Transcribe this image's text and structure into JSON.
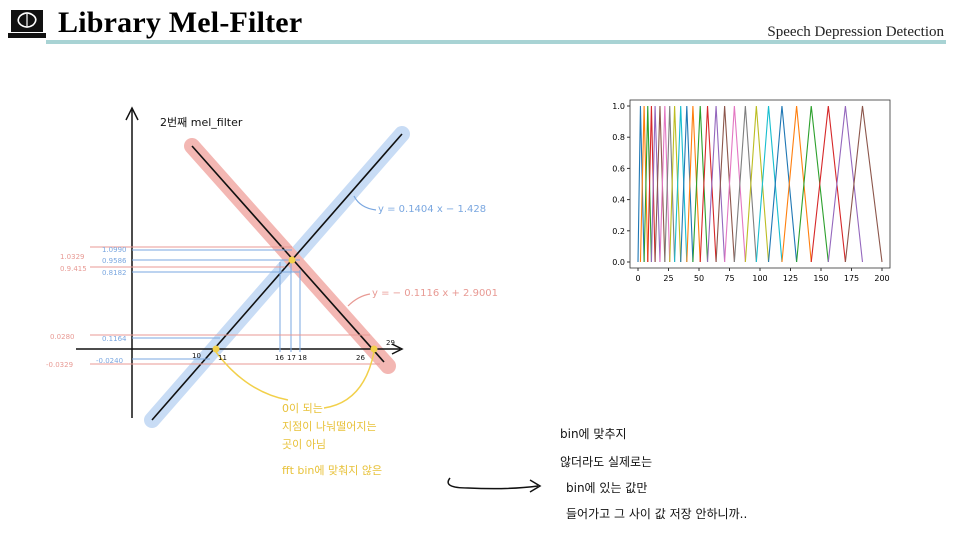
{
  "header": {
    "title": "Library Mel-Filter",
    "subtitle": "Speech Depression Detection",
    "logo_icon": "laptop-brain-icon"
  },
  "sketch": {
    "heading": "2번째 mel_filter",
    "equation_up": "y = 0.1404 x − 1.428",
    "equation_down": "y = − 0.1116 x + 2.9001",
    "y_labels_red": [
      "1.0329",
      "0.9.415",
      "0.0280",
      "-0.0329"
    ],
    "y_labels_blue": [
      "1.0990",
      "0.9586",
      "0.8182",
      "0.1164",
      "-0.0240"
    ],
    "x_labels": [
      "10",
      "11",
      "16",
      "17",
      "18",
      "26",
      "29"
    ],
    "yellow_note": [
      "0이 되는",
      "지점이 나눠떨어지는",
      "곳이 아님",
      "fft bin에 맞춰지 않은"
    ],
    "colors": {
      "up_line": "#c8dcf5",
      "down_line": "#f3b7b3",
      "blue_text": "#7aa7e0",
      "red_text": "#e89a94",
      "yellow": "#f2d04a"
    }
  },
  "plot": {
    "y_ticks": [
      "1.0",
      "0.8",
      "0.6",
      "0.4",
      "0.2",
      "0.0"
    ],
    "x_ticks": [
      "0",
      "25",
      "50",
      "75",
      "100",
      "125",
      "150",
      "175",
      "200"
    ]
  },
  "chart_data": {
    "type": "line",
    "title": "",
    "xlabel": "",
    "ylabel": "",
    "xlim": [
      0,
      200
    ],
    "ylim": [
      0,
      1.0
    ],
    "description_series": "triangular mel filters; peaks at listed x, height 1.0",
    "peaks": [
      2,
      5,
      8,
      11,
      14,
      18,
      22,
      26,
      30,
      35,
      40,
      45,
      51,
      57,
      64,
      71,
      79,
      88,
      97,
      107,
      118,
      130,
      142,
      156,
      170,
      184
    ],
    "palette": [
      "#1f77b4",
      "#ff7f0e",
      "#2ca02c",
      "#d62728",
      "#9467bd",
      "#8c564b",
      "#e377c2",
      "#7f7f7f",
      "#bcbd22",
      "#17becf"
    ]
  },
  "note": {
    "lines": [
      "bin에 맞추지",
      "않더라도 실제로는",
      "bin에 있는 값만",
      "들어가고 그 사이 값 저장 안하니까.."
    ]
  }
}
